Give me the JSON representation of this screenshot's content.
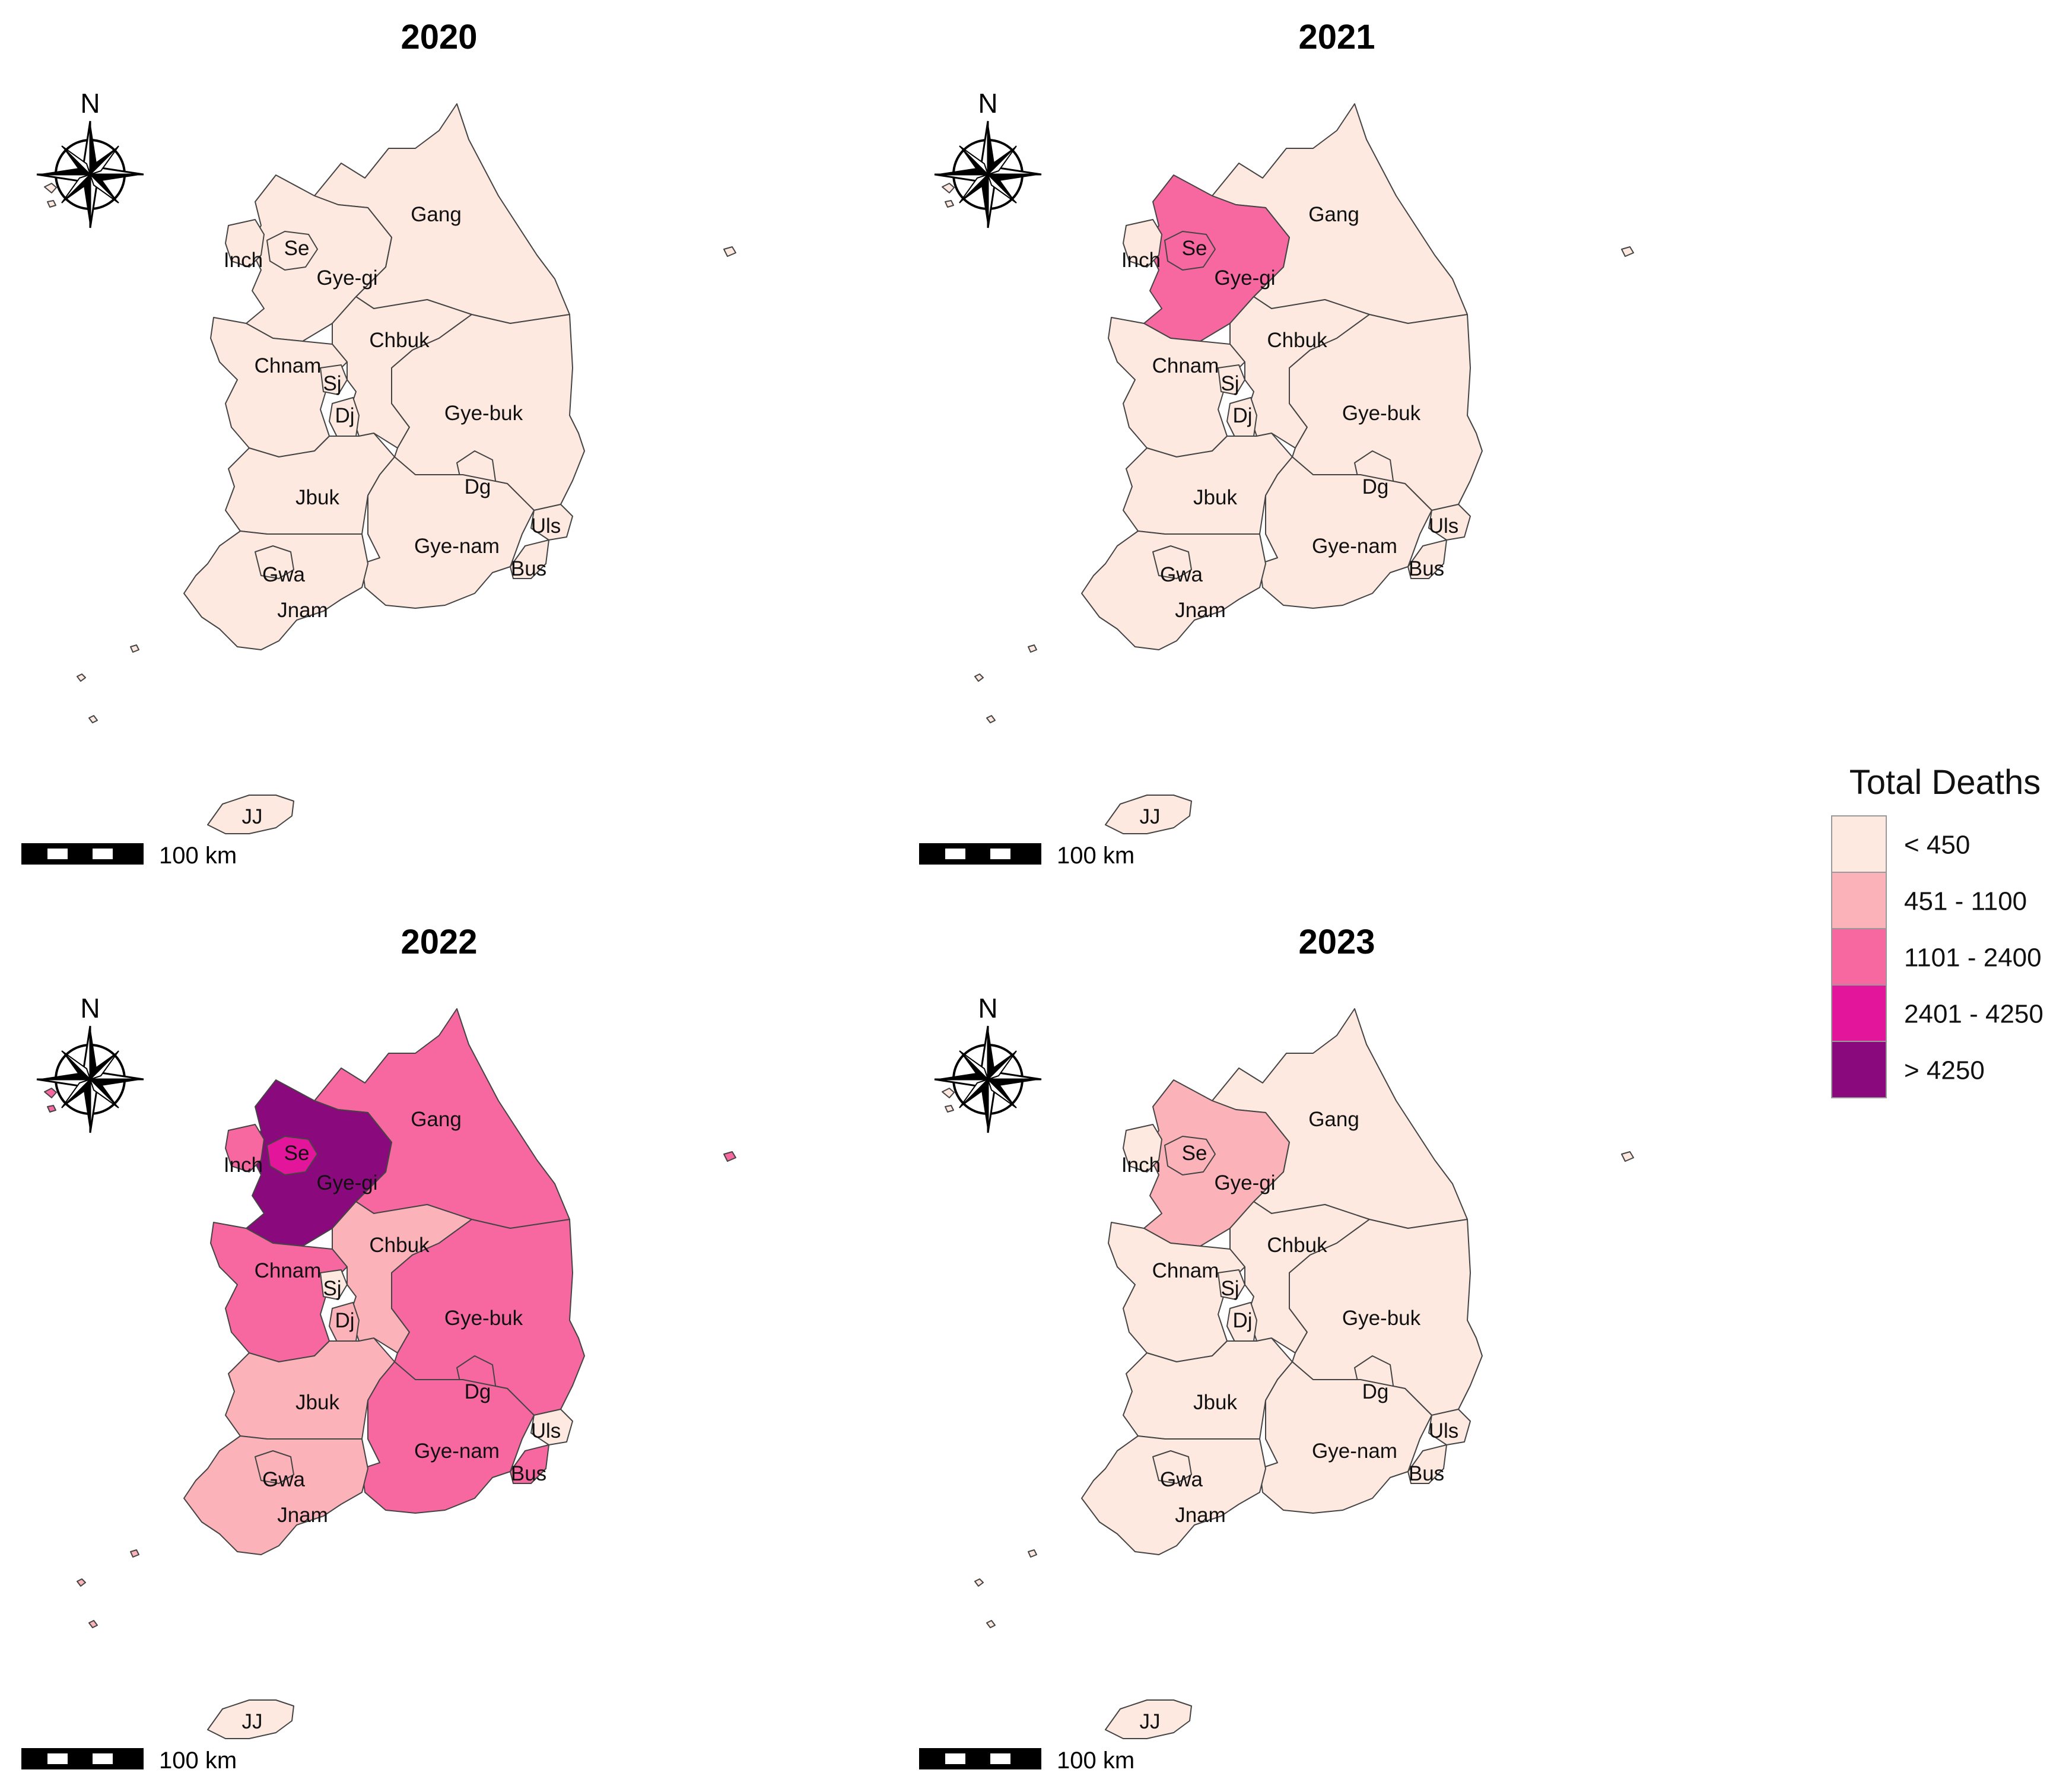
{
  "legend": {
    "title": "Total Deaths",
    "classes": [
      {
        "label": "< 450",
        "color": "#fde9e0"
      },
      {
        "label": "451 - 1100",
        "color": "#fbb3b9"
      },
      {
        "label": "1101 - 2400",
        "color": "#f768a1"
      },
      {
        "label": "2401 - 4250",
        "color": "#e3159b"
      },
      {
        "label": "> 4250",
        "color": "#8a0a7e"
      }
    ]
  },
  "north_label": "N",
  "scale_label": "100 km",
  "region_labels": {
    "gang": "Gang",
    "gyeonggi": "Gye-gi",
    "seoul": "Se",
    "incheon": "Inch",
    "chbuk": "Chbuk",
    "chnam": "Chnam",
    "sejong": "Sj",
    "daejeon": "Dj",
    "gyebuk": "Gye-buk",
    "daegu": "Dg",
    "jbuk": "Jbuk",
    "gyenam": "Gye-nam",
    "ulsan": "Uls",
    "busan": "Bus",
    "gwangju": "Gwa",
    "jnam": "Jnam",
    "jeju": "JJ"
  },
  "chart_data": [
    {
      "type": "choropleth",
      "title": "2020",
      "classes": {
        "Gang": "< 450",
        "Gye-gi": "< 450",
        "Se": "< 450",
        "Inch": "< 450",
        "Chbuk": "< 450",
        "Chnam": "< 450",
        "Sj": "< 450",
        "Dj": "< 450",
        "Gye-buk": "< 450",
        "Dg": "< 450",
        "Jbuk": "< 450",
        "Gye-nam": "< 450",
        "Uls": "< 450",
        "Bus": "< 450",
        "Gwa": "< 450",
        "Jnam": "< 450",
        "JJ": "< 450"
      }
    },
    {
      "type": "choropleth",
      "title": "2021",
      "classes": {
        "Gang": "< 450",
        "Gye-gi": "1101 - 2400",
        "Se": "1101 - 2400",
        "Inch": "< 450",
        "Chbuk": "< 450",
        "Chnam": "< 450",
        "Sj": "< 450",
        "Dj": "< 450",
        "Gye-buk": "< 450",
        "Dg": "< 450",
        "Jbuk": "< 450",
        "Gye-nam": "< 450",
        "Uls": "< 450",
        "Bus": "< 450",
        "Gwa": "< 450",
        "Jnam": "< 450",
        "JJ": "< 450"
      }
    },
    {
      "type": "choropleth",
      "title": "2022",
      "classes": {
        "Gang": "1101 - 2400",
        "Gye-gi": "> 4250",
        "Se": "2401 - 4250",
        "Inch": "1101 - 2400",
        "Chbuk": "451 - 1100",
        "Chnam": "1101 - 2400",
        "Sj": "< 450",
        "Dj": "451 - 1100",
        "Gye-buk": "1101 - 2400",
        "Dg": "1101 - 2400",
        "Jbuk": "451 - 1100",
        "Gye-nam": "1101 - 2400",
        "Uls": "< 450",
        "Bus": "1101 - 2400",
        "Gwa": "451 - 1100",
        "Jnam": "451 - 1100",
        "JJ": "< 450"
      }
    },
    {
      "type": "choropleth",
      "title": "2023",
      "classes": {
        "Gang": "< 450",
        "Gye-gi": "451 - 1100",
        "Se": "451 - 1100",
        "Inch": "< 450",
        "Chbuk": "< 450",
        "Chnam": "< 450",
        "Sj": "< 450",
        "Dj": "< 450",
        "Gye-buk": "< 450",
        "Dg": "< 450",
        "Jbuk": "< 450",
        "Gye-nam": "< 450",
        "Uls": "< 450",
        "Bus": "< 450",
        "Gwa": "< 450",
        "Jnam": "< 450",
        "JJ": "< 450"
      }
    }
  ]
}
